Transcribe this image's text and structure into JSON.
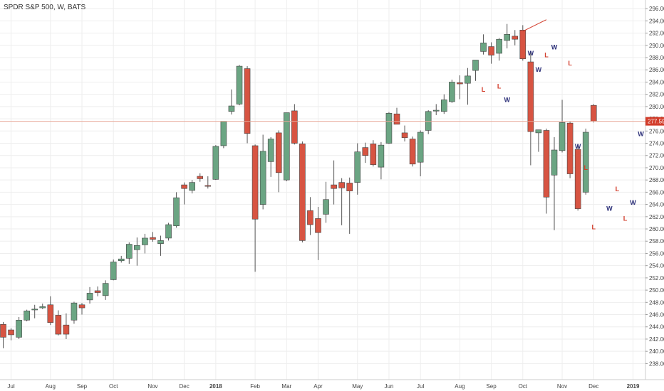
{
  "chart_data": {
    "type": "candlestick",
    "title": "SPDR S&P 500, W, BATS",
    "y_range": [
      237,
      296.6
    ],
    "y_ticks": [
      238,
      240,
      242,
      244,
      246,
      248,
      250,
      252,
      254,
      256,
      258,
      260,
      262,
      264,
      266,
      268,
      270,
      272,
      274,
      276,
      278,
      280,
      282,
      284,
      286,
      288,
      290,
      292,
      294,
      296
    ],
    "grid": true,
    "x_ticks": [
      {
        "label": "Jul",
        "week": 1
      },
      {
        "label": "Aug",
        "week": 6
      },
      {
        "label": "Sep",
        "week": 10
      },
      {
        "label": "Oct",
        "week": 14
      },
      {
        "label": "Nov",
        "week": 19
      },
      {
        "label": "Dec",
        "week": 23
      },
      {
        "label": "2018",
        "week": 27
      },
      {
        "label": "Feb",
        "week": 32
      },
      {
        "label": "Mar",
        "week": 36
      },
      {
        "label": "Apr",
        "week": 40
      },
      {
        "label": "May",
        "week": 45
      },
      {
        "label": "Jun",
        "week": 49
      },
      {
        "label": "Jul",
        "week": 53
      },
      {
        "label": "Aug",
        "week": 58
      },
      {
        "label": "Sep",
        "week": 62
      },
      {
        "label": "Oct",
        "week": 66
      },
      {
        "label": "Nov",
        "week": 71
      },
      {
        "label": "Dec",
        "week": 75
      },
      {
        "label": "2019",
        "week": 80
      }
    ],
    "last_price": 277.59,
    "last_price_label": "277.59",
    "colors": {
      "up": "#6ba583",
      "down": "#d75442",
      "marker_w": "#2b2f78",
      "marker_l": "#d23c2a",
      "price_line": "#e8a898"
    },
    "candles": [
      {
        "o": 244.4,
        "h": 244.8,
        "l": 240.5,
        "c": 242.3
      },
      {
        "o": 243.5,
        "h": 243.8,
        "l": 241.8,
        "c": 242.7
      },
      {
        "o": 242.3,
        "h": 245.6,
        "l": 242.0,
        "c": 245.1
      },
      {
        "o": 245.1,
        "h": 246.8,
        "l": 244.9,
        "c": 246.6
      },
      {
        "o": 246.8,
        "h": 247.6,
        "l": 245.4,
        "c": 246.9
      },
      {
        "o": 247.1,
        "h": 247.8,
        "l": 246.9,
        "c": 247.3
      },
      {
        "o": 247.6,
        "h": 249.0,
        "l": 244.3,
        "c": 244.7
      },
      {
        "o": 245.9,
        "h": 246.7,
        "l": 242.6,
        "c": 242.8
      },
      {
        "o": 244.3,
        "h": 246.2,
        "l": 242.0,
        "c": 242.8
      },
      {
        "o": 245.1,
        "h": 248.1,
        "l": 244.5,
        "c": 247.9
      },
      {
        "o": 247.6,
        "h": 247.9,
        "l": 246.0,
        "c": 247.1
      },
      {
        "o": 248.4,
        "h": 250.5,
        "l": 247.8,
        "c": 249.5
      },
      {
        "o": 249.9,
        "h": 250.6,
        "l": 249.0,
        "c": 249.6
      },
      {
        "o": 249.1,
        "h": 251.6,
        "l": 248.4,
        "c": 251.1
      },
      {
        "o": 251.7,
        "h": 255.0,
        "l": 251.6,
        "c": 254.6
      },
      {
        "o": 254.8,
        "h": 255.6,
        "l": 254.5,
        "c": 255.1
      },
      {
        "o": 255.2,
        "h": 257.8,
        "l": 254.3,
        "c": 257.5
      },
      {
        "o": 256.6,
        "h": 258.6,
        "l": 254.0,
        "c": 257.3
      },
      {
        "o": 257.4,
        "h": 259.2,
        "l": 256.0,
        "c": 258.5
      },
      {
        "o": 258.6,
        "h": 259.5,
        "l": 257.9,
        "c": 258.3
      },
      {
        "o": 257.6,
        "h": 258.9,
        "l": 255.6,
        "c": 258.1
      },
      {
        "o": 258.5,
        "h": 261.0,
        "l": 258.1,
        "c": 260.7
      },
      {
        "o": 260.5,
        "h": 266.0,
        "l": 260.2,
        "c": 265.1
      },
      {
        "o": 267.2,
        "h": 267.6,
        "l": 264.0,
        "c": 266.6
      },
      {
        "o": 266.3,
        "h": 268.0,
        "l": 265.8,
        "c": 267.6
      },
      {
        "o": 268.6,
        "h": 269.1,
        "l": 267.7,
        "c": 268.2
      },
      {
        "o": 267.1,
        "h": 268.6,
        "l": 266.6,
        "c": 267.0
      },
      {
        "o": 268.1,
        "h": 273.7,
        "l": 268.0,
        "c": 273.5
      },
      {
        "o": 273.6,
        "h": 277.6,
        "l": 273.2,
        "c": 277.6
      },
      {
        "o": 279.2,
        "h": 282.8,
        "l": 278.7,
        "c": 280.1
      },
      {
        "o": 280.4,
        "h": 286.8,
        "l": 280.2,
        "c": 286.6
      },
      {
        "o": 286.2,
        "h": 286.6,
        "l": 274.0,
        "c": 275.6
      },
      {
        "o": 273.6,
        "h": 273.8,
        "l": 253.0,
        "c": 261.6
      },
      {
        "o": 264.0,
        "h": 275.4,
        "l": 263.2,
        "c": 272.7
      },
      {
        "o": 271.0,
        "h": 275.0,
        "l": 268.5,
        "c": 274.7
      },
      {
        "o": 275.7,
        "h": 276.1,
        "l": 266.0,
        "c": 269.2
      },
      {
        "o": 268.0,
        "h": 279.0,
        "l": 267.8,
        "c": 279.0
      },
      {
        "o": 279.3,
        "h": 280.4,
        "l": 273.8,
        "c": 274.0
      },
      {
        "o": 273.9,
        "h": 274.3,
        "l": 257.8,
        "c": 258.1
      },
      {
        "o": 263.0,
        "h": 265.2,
        "l": 259.0,
        "c": 260.7
      },
      {
        "o": 261.7,
        "h": 263.6,
        "l": 254.9,
        "c": 259.4
      },
      {
        "o": 262.4,
        "h": 267.7,
        "l": 261.0,
        "c": 264.8
      },
      {
        "o": 267.2,
        "h": 271.2,
        "l": 264.0,
        "c": 266.6
      },
      {
        "o": 267.6,
        "h": 268.3,
        "l": 260.6,
        "c": 266.7
      },
      {
        "o": 267.5,
        "h": 268.4,
        "l": 259.2,
        "c": 266.2
      },
      {
        "o": 267.6,
        "h": 274.0,
        "l": 265.6,
        "c": 272.6
      },
      {
        "o": 273.3,
        "h": 274.1,
        "l": 270.8,
        "c": 272.0
      },
      {
        "o": 273.9,
        "h": 274.5,
        "l": 270.2,
        "c": 270.5
      },
      {
        "o": 270.1,
        "h": 274.2,
        "l": 268.1,
        "c": 273.7
      },
      {
        "o": 274.0,
        "h": 279.1,
        "l": 273.9,
        "c": 278.9
      },
      {
        "o": 278.8,
        "h": 279.8,
        "l": 277.2,
        "c": 277.1
      },
      {
        "o": 275.7,
        "h": 276.9,
        "l": 274.3,
        "c": 274.9
      },
      {
        "o": 274.7,
        "h": 275.1,
        "l": 270.2,
        "c": 270.6
      },
      {
        "o": 270.9,
        "h": 276.1,
        "l": 268.6,
        "c": 275.8
      },
      {
        "o": 276.1,
        "h": 279.4,
        "l": 275.5,
        "c": 279.2
      },
      {
        "o": 279.3,
        "h": 280.4,
        "l": 278.6,
        "c": 279.4
      },
      {
        "o": 279.2,
        "h": 282.0,
        "l": 278.8,
        "c": 281.1
      },
      {
        "o": 280.8,
        "h": 284.4,
        "l": 280.6,
        "c": 284.0
      },
      {
        "o": 283.9,
        "h": 285.1,
        "l": 281.2,
        "c": 283.7
      },
      {
        "o": 283.8,
        "h": 286.3,
        "l": 280.3,
        "c": 285.0
      },
      {
        "o": 285.9,
        "h": 287.5,
        "l": 284.2,
        "c": 287.6
      },
      {
        "o": 289.0,
        "h": 291.8,
        "l": 288.5,
        "c": 290.4
      },
      {
        "o": 289.8,
        "h": 290.5,
        "l": 287.0,
        "c": 288.4
      },
      {
        "o": 288.7,
        "h": 291.2,
        "l": 287.5,
        "c": 291.0
      },
      {
        "o": 290.8,
        "h": 293.5,
        "l": 289.5,
        "c": 291.8
      },
      {
        "o": 291.5,
        "h": 292.5,
        "l": 290.0,
        "c": 291.0
      },
      {
        "o": 292.5,
        "h": 293.3,
        "l": 287.5,
        "c": 287.8
      },
      {
        "o": 287.3,
        "h": 288.9,
        "l": 270.4,
        "c": 275.9
      },
      {
        "o": 275.7,
        "h": 276.2,
        "l": 272.6,
        "c": 276.2
      },
      {
        "o": 276.1,
        "h": 276.4,
        "l": 262.5,
        "c": 265.2
      },
      {
        "o": 268.8,
        "h": 275.0,
        "l": 259.8,
        "c": 272.9
      },
      {
        "o": 272.8,
        "h": 281.1,
        "l": 272.5,
        "c": 277.4
      },
      {
        "o": 277.3,
        "h": 277.5,
        "l": 268.3,
        "c": 269.0
      },
      {
        "o": 273.0,
        "h": 273.6,
        "l": 263.0,
        "c": 263.3
      },
      {
        "o": 266.0,
        "h": 276.4,
        "l": 265.6,
        "c": 275.8
      },
      {
        "o": 280.2,
        "h": 280.4,
        "l": 277.4,
        "c": 277.6
      }
    ],
    "markers": [
      {
        "text": "L",
        "week": 61,
        "value": 282.8,
        "kind": "L"
      },
      {
        "text": "L",
        "week": 63,
        "value": 283.3,
        "kind": "L"
      },
      {
        "text": "W",
        "week": 64,
        "value": 281.1,
        "kind": "W"
      },
      {
        "text": "W",
        "week": 67,
        "value": 288.7,
        "kind": "W"
      },
      {
        "text": "W",
        "week": 68,
        "value": 286.0,
        "kind": "W"
      },
      {
        "text": "L",
        "week": 69,
        "value": 288.4,
        "kind": "L"
      },
      {
        "text": "W",
        "week": 70,
        "value": 289.7,
        "kind": "W"
      },
      {
        "text": "L",
        "week": 72,
        "value": 287.1,
        "kind": "L"
      },
      {
        "text": "W",
        "week": 73,
        "value": 273.5,
        "kind": "W"
      },
      {
        "text": "L",
        "week": 74,
        "value": 270.0,
        "kind": "L"
      },
      {
        "text": "L",
        "week": 75,
        "value": 260.3,
        "kind": "L"
      },
      {
        "text": "W",
        "week": 77,
        "value": 263.3,
        "kind": "W"
      },
      {
        "text": "L",
        "week": 78,
        "value": 266.5,
        "kind": "L"
      },
      {
        "text": "L",
        "week": 79,
        "value": 261.7,
        "kind": "L"
      },
      {
        "text": "W",
        "week": 80,
        "value": 264.3,
        "kind": "W"
      },
      {
        "text": "W",
        "week": 81,
        "value": 275.5,
        "kind": "W"
      }
    ],
    "trendline": [
      {
        "week": 66,
        "value": 292.3
      },
      {
        "week": 69,
        "value": 294.2
      }
    ]
  }
}
